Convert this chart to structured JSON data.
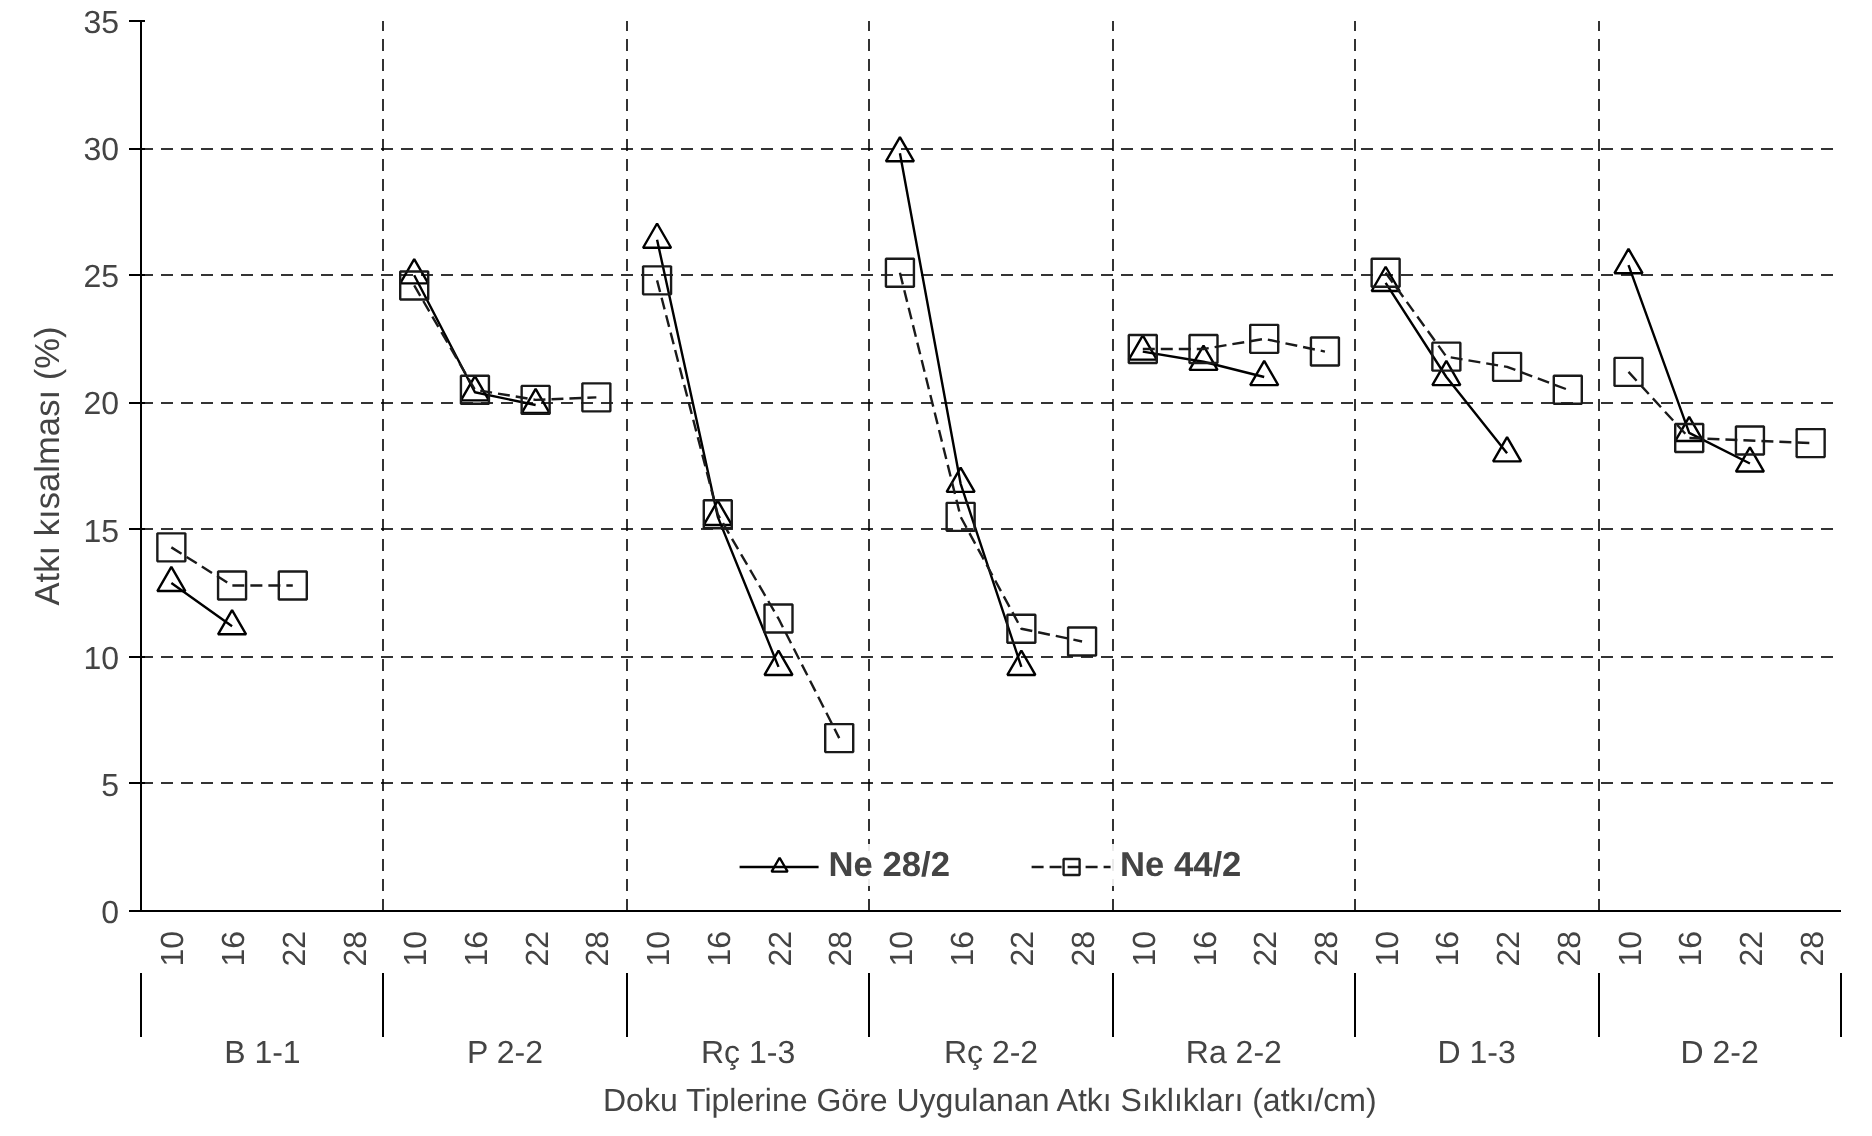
{
  "chart_data": {
    "type": "line",
    "ylabel": "Atkı kısalması (%)",
    "xlabel": "Doku Tiplerine Göre Uygulanan Atkı Sıklıkları (atkı/cm)",
    "annotations": [
      "B 1-1",
      "P 2-2",
      "Rç 1-3",
      "Rç 2-2",
      "Ra 2-2",
      "D 1-3",
      "D 2-2"
    ],
    "categories": [
      "10",
      "16",
      "22",
      "28",
      "10",
      "16",
      "22",
      "28",
      "10",
      "16",
      "22",
      "28",
      "10",
      "16",
      "22",
      "28",
      "10",
      "16",
      "22",
      "28",
      "10",
      "16",
      "22",
      "28",
      "10",
      "16",
      "22",
      "28"
    ],
    "series": [
      {
        "name": "Ne 28/2",
        "color": "#000000",
        "marker": "triangle",
        "line_style": "solid",
        "values": [
          12.9,
          11.2,
          null,
          null,
          25.0,
          20.4,
          19.9,
          null,
          26.4,
          15.5,
          9.6,
          null,
          29.8,
          16.8,
          9.6,
          null,
          22.0,
          21.6,
          21.0,
          null,
          24.7,
          21.0,
          18.0,
          null,
          25.4,
          18.8,
          17.6,
          null
        ]
      },
      {
        "name": "Ne 44/2",
        "color": "#1a1a1a",
        "marker": "square",
        "line_style": "dashed",
        "values": [
          14.3,
          12.8,
          12.8,
          null,
          24.6,
          20.5,
          20.1,
          20.2,
          24.8,
          15.6,
          11.5,
          6.8,
          25.1,
          15.5,
          11.1,
          10.6,
          22.1,
          22.1,
          22.5,
          22.0,
          25.1,
          21.8,
          21.4,
          20.5,
          21.2,
          18.6,
          18.5,
          18.4
        ]
      }
    ],
    "ylim": [
      0,
      35
    ],
    "yticks": [
      0,
      5,
      10,
      15,
      20,
      25,
      30,
      35
    ],
    "grid": true,
    "legend": "bottom"
  }
}
